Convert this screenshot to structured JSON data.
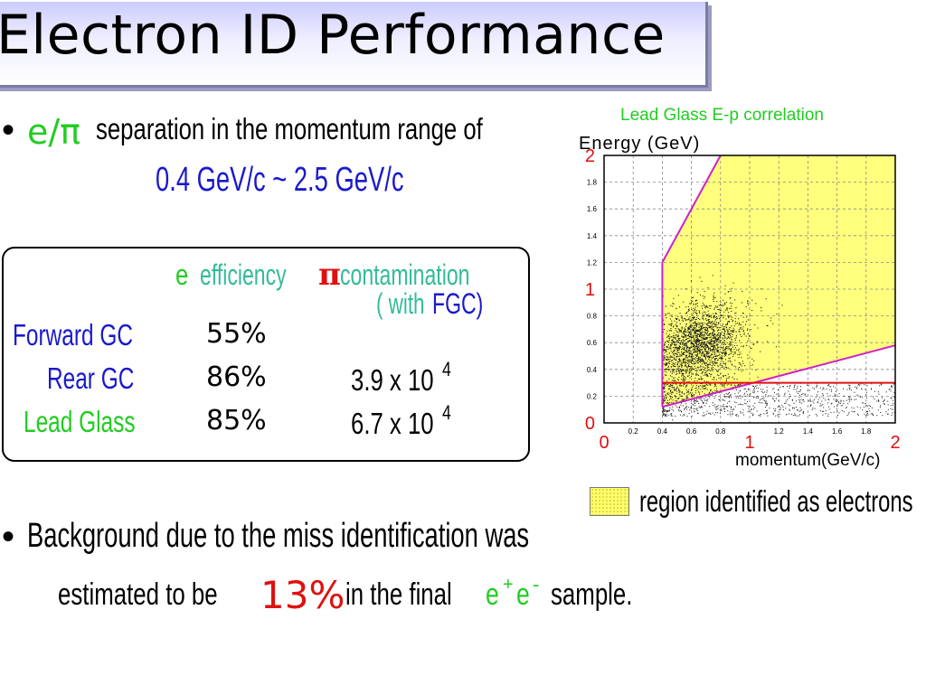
{
  "title": "Electron ID Performance",
  "bullet1": {
    "bullet": "•",
    "symbol": "e/π",
    "text": "separation in the momentum range of",
    "range": "0.4 GeV/c ~ 2.5 GeV/c"
  },
  "table": {
    "header_efficiency_e": "e",
    "header_efficiency": "efficiency",
    "header_contamination_pi": "π",
    "header_contamination": "contamination",
    "header_with": "( with",
    "header_fgc": "FGC)",
    "rows": [
      {
        "name": "Forward GC",
        "efficiency": "55%",
        "contamination": "",
        "exp": ""
      },
      {
        "name": "Rear GC",
        "efficiency": "86%",
        "contamination": "3.9 x 10",
        "exp": "4"
      },
      {
        "name": "Lead Glass",
        "efficiency": "85%",
        "contamination": "6.7 x 10",
        "exp": "4"
      }
    ],
    "colors": {
      "forward": "#1a1acc",
      "rear": "#1a1acc",
      "lead": "#22cc22"
    }
  },
  "bullet2": {
    "bullet": "•",
    "line1": "Background due to the miss identification was",
    "line2a": "estimated to be",
    "value": "13%",
    "line2b": "in the final",
    "eplus": "e",
    "plus": "+",
    "eminus": "e",
    "minus": "-",
    "line2c": "sample."
  },
  "legend": {
    "label": "region identified as electrons"
  },
  "chart_data": {
    "type": "scatter",
    "title": "Lead Glass  E-p  correlation",
    "xlabel": "momentum(GeV/c)",
    "ylabel": "Energy  (GeV)",
    "xlim": [
      0,
      2
    ],
    "ylim": [
      0,
      2
    ],
    "grid": true,
    "x_ticks": [
      "0",
      "0.2",
      "0.4",
      "0.6",
      "0.8",
      "1",
      "1.2",
      "1.4",
      "1.6",
      "1.8",
      "2"
    ],
    "y_ticks": [
      "0",
      "0.2",
      "0.4",
      "0.6",
      "0.8",
      "1",
      "1.2",
      "1.4",
      "1.6",
      "1.8",
      "2"
    ],
    "electron_region": {
      "color": "#ffff66",
      "p_min": 0.4,
      "upper_line": [
        [
          0.4,
          1.2
        ],
        [
          0.8,
          2.0
        ]
      ],
      "lower_line": [
        [
          0.4,
          0.12
        ],
        [
          2.0,
          0.58
        ]
      ]
    },
    "threshold_line": {
      "energy": 0.3,
      "p_range": [
        0.4,
        2.0
      ],
      "color": "#e01010"
    },
    "cut_line_color": "#d020c8",
    "electron_cluster": {
      "center_p": 0.65,
      "center_e": 0.58,
      "spread_p": 0.18,
      "spread_e": 0.2
    },
    "pion_band": {
      "p_range": [
        0.4,
        2.0
      ],
      "e_range": [
        0.05,
        0.3
      ]
    }
  }
}
